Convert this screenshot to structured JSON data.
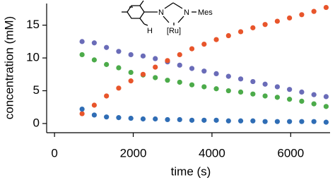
{
  "chart_data": {
    "type": "scatter",
    "x_label": "time (s)",
    "y_label": "concentration (mM)",
    "x": [
      700,
      1010,
      1320,
      1630,
      1940,
      2250,
      2560,
      2870,
      3180,
      3490,
      3800,
      4110,
      4420,
      4730,
      5040,
      5350,
      5660,
      5970,
      6280,
      6590,
      6900
    ],
    "series": [
      {
        "color": "#6a6cb8",
        "values": [
          12.5,
          12.3,
          11.6,
          11.0,
          10.5,
          10.3,
          9.9,
          9.4,
          8.9,
          8.4,
          8.0,
          7.6,
          7.2,
          6.8,
          6.4,
          6.0,
          5.6,
          5.2,
          4.8,
          4.4,
          4.1
        ]
      },
      {
        "color": "#4cab4a",
        "values": [
          10.5,
          9.7,
          9.0,
          8.5,
          7.8,
          7.4,
          7.0,
          6.6,
          6.3,
          5.9,
          5.6,
          5.3,
          5.0,
          4.8,
          4.5,
          4.2,
          4.0,
          3.7,
          3.4,
          3.0,
          2.6
        ]
      },
      {
        "color": "#e8552b",
        "values": [
          1.5,
          2.8,
          4.2,
          5.4,
          6.5,
          7.5,
          8.6,
          9.6,
          10.5,
          11.4,
          12.1,
          12.8,
          13.4,
          14.0,
          14.6,
          15.1,
          15.6,
          16.1,
          16.6,
          17.1,
          17.7
        ]
      },
      {
        "color": "#2f6db5",
        "values": [
          2.2,
          1.3,
          1.0,
          0.9,
          0.8,
          0.7,
          0.7,
          0.6,
          0.6,
          0.5,
          0.5,
          0.5,
          0.4,
          0.4,
          0.4,
          0.3,
          0.3,
          0.3,
          0.3,
          0.3,
          0.2
        ]
      }
    ],
    "xlim": [
      -200,
      7000
    ],
    "ylim": [
      -1.4,
      18.3
    ],
    "xticks": [
      0,
      2000,
      4000,
      6000
    ],
    "yticks": [
      0,
      5,
      10,
      15
    ],
    "annotations": [
      "N",
      "N",
      "Mes",
      "[Ru]",
      "H"
    ]
  }
}
